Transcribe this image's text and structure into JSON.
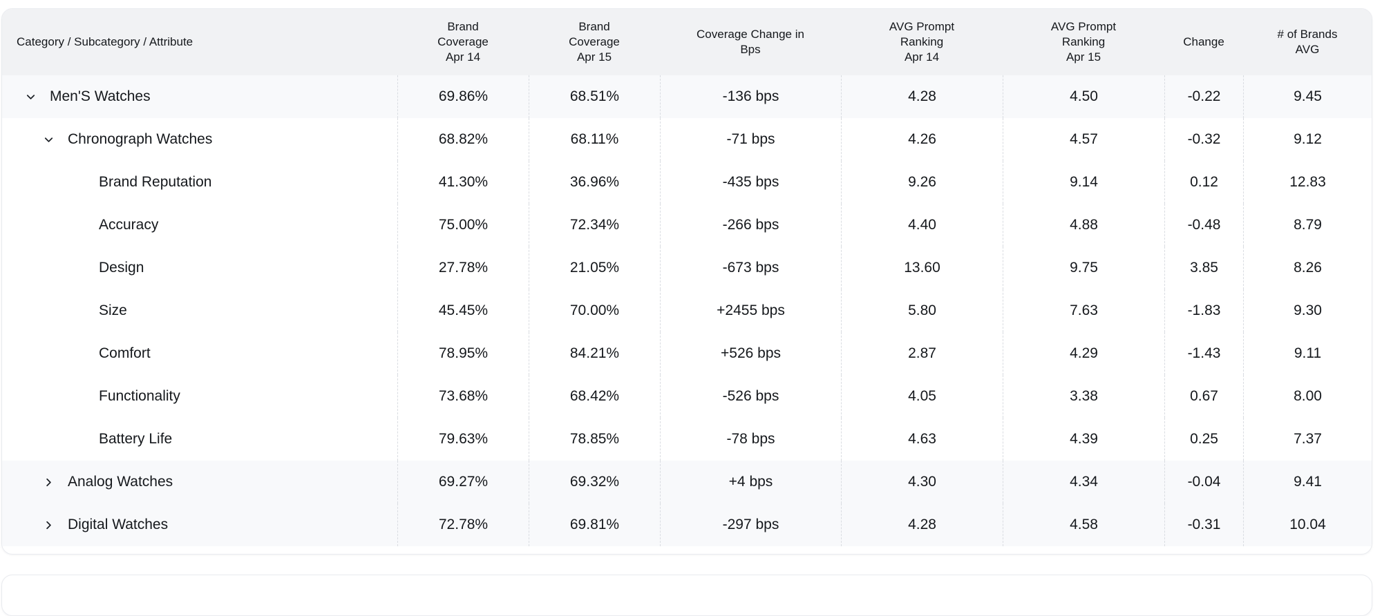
{
  "table": {
    "columns": [
      {
        "id": "category",
        "label": "Category / Subcategory / Attribute"
      },
      {
        "id": "brand-coverage-apr-14",
        "label": "Brand\nCoverage\nApr 14"
      },
      {
        "id": "brand-coverage-apr-15",
        "label": "Brand\nCoverage\nApr 15"
      },
      {
        "id": "coverage-change-bps",
        "label": "Coverage Change in\nBps"
      },
      {
        "id": "avg-prompt-ranking-apr-14",
        "label": "AVG Prompt\nRanking\nApr 14"
      },
      {
        "id": "avg-prompt-ranking-apr-15",
        "label": "AVG Prompt\nRanking\nApr 15"
      },
      {
        "id": "change",
        "label": "Change"
      },
      {
        "id": "num-brands-avg",
        "label": "# of Brands\nAVG"
      }
    ],
    "rows": [
      {
        "label": "Men'S Watches",
        "level": 1,
        "chevron": "down",
        "highlighted": true,
        "values": [
          "69.86%",
          "68.51%",
          "-136 bps",
          "4.28",
          "4.50",
          "-0.22",
          "9.45"
        ]
      },
      {
        "label": "Chronograph Watches",
        "level": 2,
        "chevron": "down",
        "highlighted": false,
        "values": [
          "68.82%",
          "68.11%",
          "-71 bps",
          "4.26",
          "4.57",
          "-0.32",
          "9.12"
        ]
      },
      {
        "label": "Brand Reputation",
        "level": 3,
        "chevron": "none",
        "highlighted": false,
        "values": [
          "41.30%",
          "36.96%",
          "-435 bps",
          "9.26",
          "9.14",
          "0.12",
          "12.83"
        ]
      },
      {
        "label": "Accuracy",
        "level": 3,
        "chevron": "none",
        "highlighted": false,
        "values": [
          "75.00%",
          "72.34%",
          "-266 bps",
          "4.40",
          "4.88",
          "-0.48",
          "8.79"
        ]
      },
      {
        "label": "Design",
        "level": 3,
        "chevron": "none",
        "highlighted": false,
        "values": [
          "27.78%",
          "21.05%",
          "-673 bps",
          "13.60",
          "9.75",
          "3.85",
          "8.26"
        ]
      },
      {
        "label": "Size",
        "level": 3,
        "chevron": "none",
        "highlighted": false,
        "values": [
          "45.45%",
          "70.00%",
          "+2455 bps",
          "5.80",
          "7.63",
          "-1.83",
          "9.30"
        ]
      },
      {
        "label": "Comfort",
        "level": 3,
        "chevron": "none",
        "highlighted": false,
        "values": [
          "78.95%",
          "84.21%",
          "+526 bps",
          "2.87",
          "4.29",
          "-1.43",
          "9.11"
        ]
      },
      {
        "label": "Functionality",
        "level": 3,
        "chevron": "none",
        "highlighted": false,
        "values": [
          "73.68%",
          "68.42%",
          "-526 bps",
          "4.05",
          "3.38",
          "0.67",
          "8.00"
        ]
      },
      {
        "label": "Battery Life",
        "level": 3,
        "chevron": "none",
        "highlighted": false,
        "values": [
          "79.63%",
          "78.85%",
          "-78 bps",
          "4.63",
          "4.39",
          "0.25",
          "7.37"
        ]
      },
      {
        "label": "Analog Watches",
        "level": 2,
        "chevron": "right",
        "highlighted": true,
        "values": [
          "69.27%",
          "69.32%",
          "+4 bps",
          "4.30",
          "4.34",
          "-0.04",
          "9.41"
        ]
      },
      {
        "label": "Digital Watches",
        "level": 2,
        "chevron": "right",
        "highlighted": true,
        "values": [
          "72.78%",
          "69.81%",
          "-297 bps",
          "4.28",
          "4.58",
          "-0.31",
          "10.04"
        ]
      }
    ]
  },
  "icons": {
    "expanded": "chevron-down-icon",
    "collapsed": "chevron-right-icon"
  },
  "colors": {
    "header_bg": "#f1f2f4",
    "row_highlight_bg": "#f8f9fb",
    "row_bg": "#ffffff",
    "column_divider": "#d9dce1",
    "card_border": "#e9ebef",
    "text": "#15181c"
  }
}
